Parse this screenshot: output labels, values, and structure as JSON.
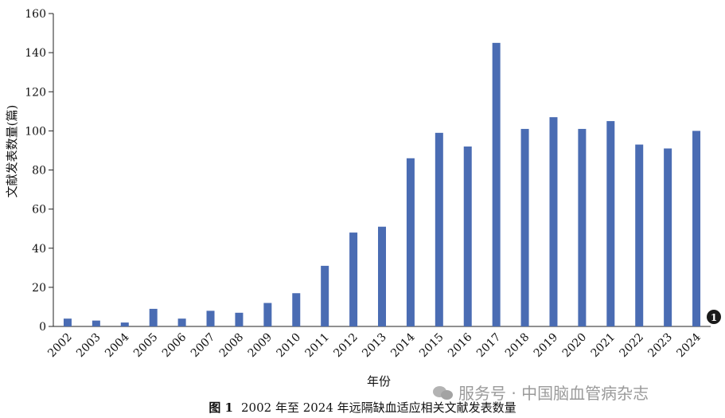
{
  "chart_data": {
    "type": "bar",
    "title": "",
    "xlabel": "年份",
    "ylabel": "文献发表数量(篇)",
    "categories": [
      "2002",
      "2003",
      "2004",
      "2005",
      "2006",
      "2007",
      "2008",
      "2009",
      "2010",
      "2011",
      "2012",
      "2013",
      "2014",
      "2015",
      "2016",
      "2017",
      "2018",
      "2019",
      "2020",
      "2021",
      "2022",
      "2023",
      "2024"
    ],
    "values": [
      4,
      3,
      2,
      9,
      4,
      8,
      7,
      12,
      17,
      31,
      48,
      51,
      86,
      99,
      92,
      145,
      101,
      107,
      101,
      105,
      93,
      91,
      100
    ],
    "ylim": [
      0,
      160
    ],
    "yticks": [
      0,
      20,
      40,
      60,
      80,
      100,
      120,
      140,
      160
    ],
    "bar_color": "#4a6cb3",
    "grid": false,
    "legend": "none"
  },
  "marker": {
    "label": "1",
    "color": "#1a1a1a"
  },
  "caption": {
    "figure": "图 1",
    "text": "2002 年至 2024 年远隔缺血适应相关文献发表数量"
  },
  "watermark": {
    "text": "服务号 · 中国脑血管病杂志"
  }
}
